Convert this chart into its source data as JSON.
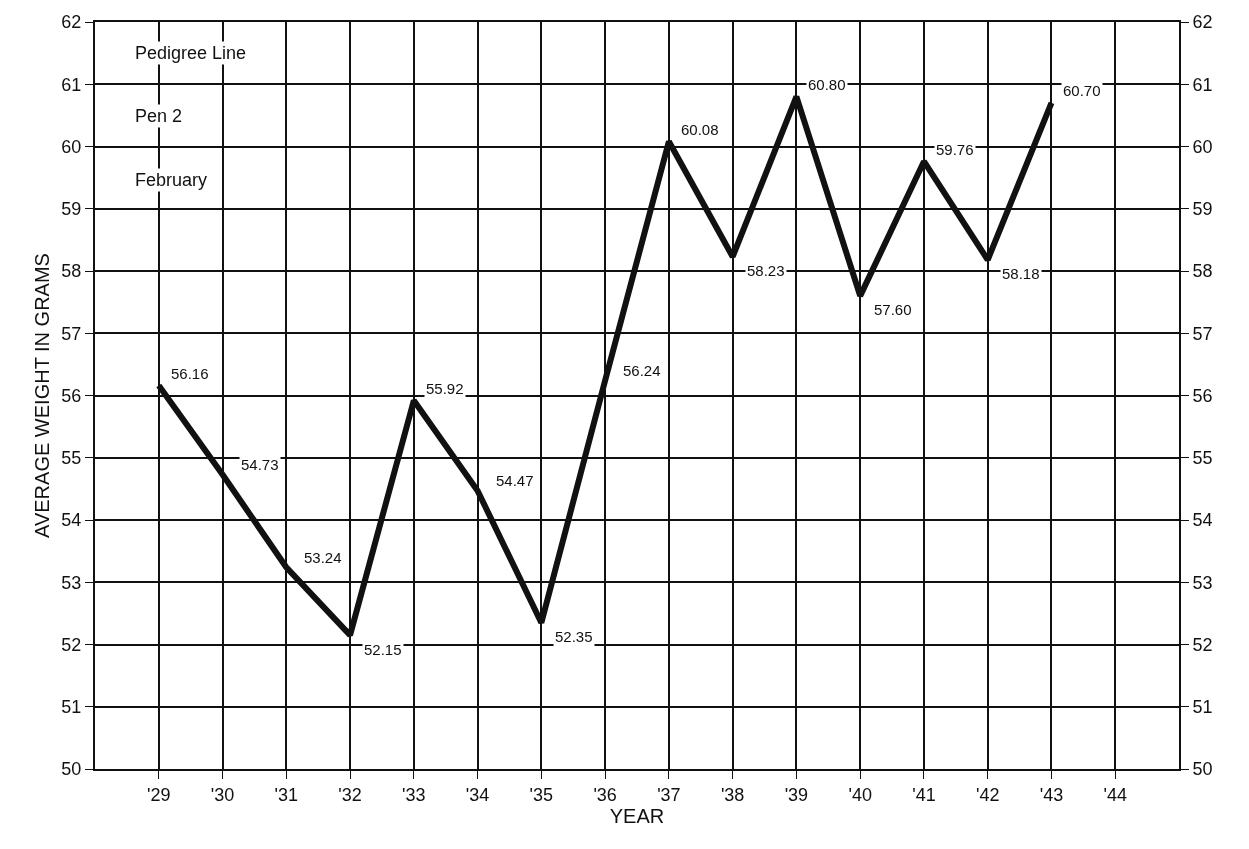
{
  "chart_data": {
    "type": "line",
    "xlabel": "YEAR",
    "ylabel": "AVERAGE WEIGHT IN GRAMS",
    "annotations": [
      "Pedigree Line",
      "Pen 2",
      "February"
    ],
    "categories": [
      "'29",
      "'30",
      "'31",
      "'32",
      "'33",
      "'34",
      "'35",
      "'36",
      "'37",
      "'38",
      "'39",
      "'40",
      "'41",
      "'42",
      "'43",
      "'44"
    ],
    "series": [
      {
        "color": "#111111",
        "values": [
          56.16,
          54.73,
          53.24,
          52.15,
          55.92,
          54.47,
          52.35,
          56.24,
          60.08,
          58.23,
          60.8,
          57.6,
          59.76,
          58.18,
          60.7,
          null
        ],
        "value_labels": [
          "56.16",
          "54.73",
          "53.24",
          "52.15",
          "55.92",
          "54.47",
          "52.35",
          "56.24",
          "60.08",
          "58.23",
          "60.80",
          "57.60",
          "59.76",
          "58.18",
          "60.70",
          null
        ]
      }
    ],
    "ylim": [
      50,
      62
    ],
    "yticks": [
      50,
      51,
      52,
      53,
      54,
      55,
      56,
      57,
      58,
      59,
      60,
      61,
      62
    ],
    "y2lim": [
      50,
      62
    ],
    "y2ticks": [
      50,
      51,
      52,
      53,
      54,
      55,
      56,
      57,
      58,
      59,
      60,
      61,
      62
    ],
    "grid": true,
    "marker": "none",
    "line_style": "solid"
  }
}
